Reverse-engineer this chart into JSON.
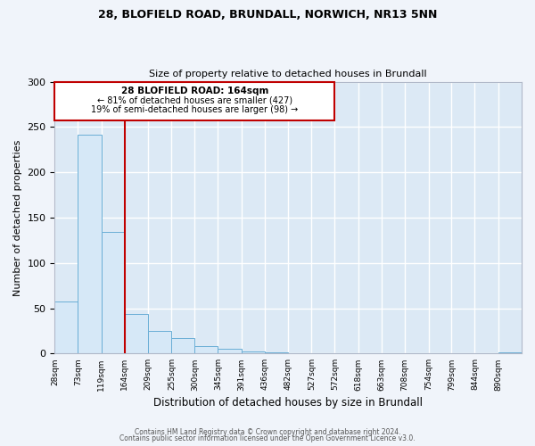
{
  "title1": "28, BLOFIELD ROAD, BRUNDALL, NORWICH, NR13 5NN",
  "title2": "Size of property relative to detached houses in Brundall",
  "xlabel": "Distribution of detached houses by size in Brundall",
  "ylabel": "Number of detached properties",
  "bar_edges": [
    28,
    73,
    119,
    164,
    209,
    255,
    300,
    345,
    391,
    436,
    482,
    527,
    572,
    618,
    663,
    708,
    754,
    799,
    844,
    890,
    935
  ],
  "bar_heights": [
    57,
    241,
    134,
    44,
    25,
    17,
    8,
    5,
    2,
    1,
    0,
    0,
    0,
    0,
    0,
    0,
    0,
    0,
    0,
    1
  ],
  "bar_color": "#d6e8f7",
  "bar_edge_color": "#6aaed6",
  "vline_x": 164,
  "vline_color": "#c00000",
  "annotation_box_color": "#c00000",
  "annotation_text_line1": "28 BLOFIELD ROAD: 164sqm",
  "annotation_text_line2": "← 81% of detached houses are smaller (427)",
  "annotation_text_line3": "19% of semi-detached houses are larger (98) →",
  "ylim": [
    0,
    300
  ],
  "yticks": [
    0,
    50,
    100,
    150,
    200,
    250,
    300
  ],
  "fig_bg": "#f0f4fa",
  "plot_bg": "#dce9f5",
  "grid_color": "#ffffff",
  "footer1": "Contains HM Land Registry data © Crown copyright and database right 2024.",
  "footer2": "Contains public sector information licensed under the Open Government Licence v3.0."
}
